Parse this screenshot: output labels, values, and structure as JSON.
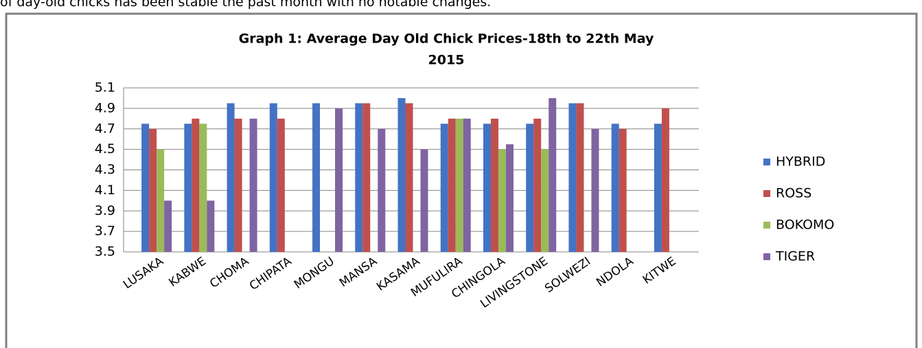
{
  "document": {
    "intro_text": "of day-old chicks has been stable the past month with no notable changes."
  },
  "chart_data": {
    "type": "bar",
    "title": [
      "Graph 1: Average Day Old Chick Prices-18th to 22th May",
      "2015"
    ],
    "categories": [
      "LUSAKA",
      "KABWE",
      "CHOMA",
      "CHIPATA",
      "MONGU",
      "MANSA",
      "KASAMA",
      "MUFULIRA",
      "CHINGOLA",
      "LIVINGSTONE",
      "SOLWEZI",
      "NDOLA",
      "KITWE"
    ],
    "series": [
      {
        "name": "HYBRID",
        "color": "#4472c4",
        "values": [
          4.75,
          4.75,
          4.95,
          4.95,
          4.95,
          4.95,
          5.0,
          4.75,
          4.75,
          4.75,
          4.95,
          4.75,
          4.75
        ]
      },
      {
        "name": "ROSS",
        "color": "#c0504d",
        "values": [
          4.7,
          4.8,
          4.8,
          4.8,
          null,
          4.95,
          4.95,
          4.8,
          4.8,
          4.8,
          4.95,
          4.7,
          4.9
        ]
      },
      {
        "name": "BOKOMO",
        "color": "#9bbb59",
        "values": [
          4.5,
          4.75,
          null,
          null,
          null,
          null,
          null,
          4.8,
          4.5,
          4.5,
          null,
          null,
          null
        ]
      },
      {
        "name": "TIGER",
        "color": "#8064a2",
        "values": [
          4.0,
          4.0,
          4.8,
          null,
          4.9,
          4.7,
          4.5,
          4.8,
          4.55,
          5.0,
          4.7,
          null,
          null
        ]
      }
    ],
    "ylim": [
      3.5,
      5.1
    ],
    "yticks": [
      3.5,
      3.7,
      3.9,
      4.1,
      4.3,
      4.5,
      4.7,
      4.9,
      5.1
    ],
    "grid": true,
    "legend": "right"
  }
}
